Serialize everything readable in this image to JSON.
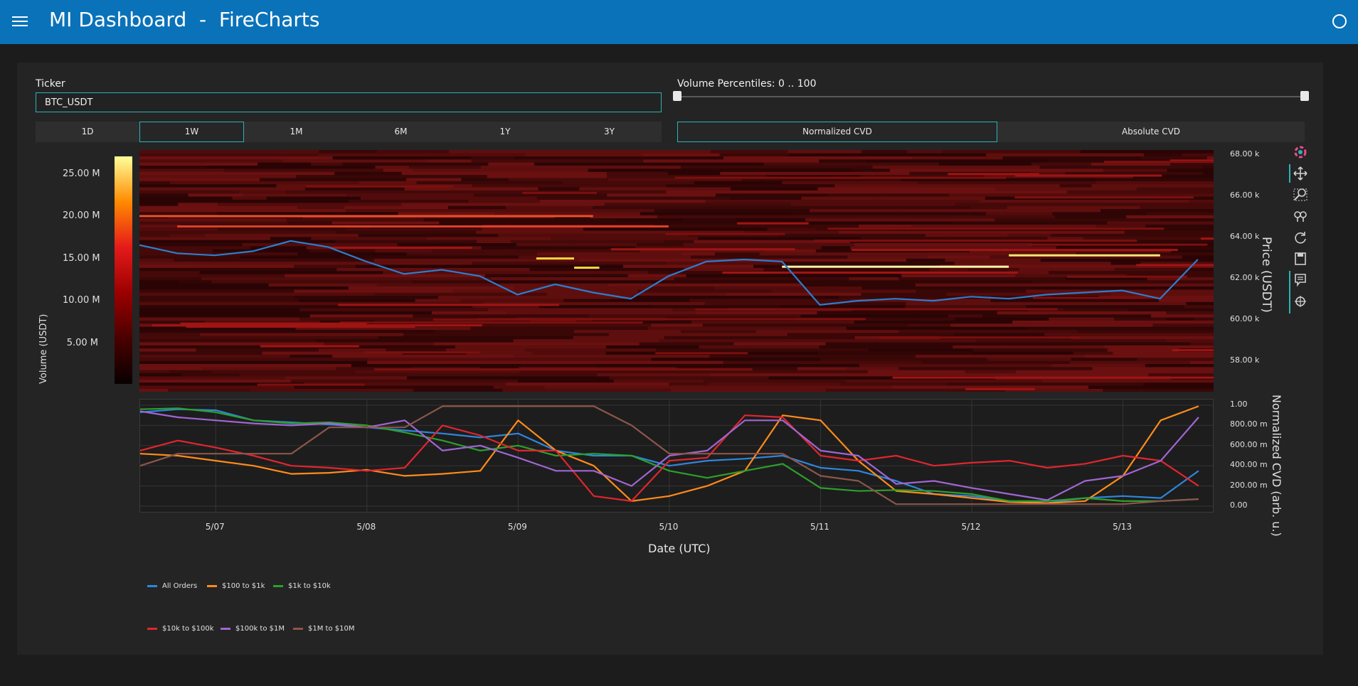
{
  "header": {
    "title": "MI Dashboard  -  FireCharts"
  },
  "ticker": {
    "label": "Ticker",
    "value": "BTC_USDT"
  },
  "volume_percentiles": {
    "label": "Volume Percentiles: 0 .. 100",
    "min": 0,
    "max": 100
  },
  "timeframes": [
    {
      "label": "1D",
      "active": false
    },
    {
      "label": "1W",
      "active": true
    },
    {
      "label": "1M",
      "active": false
    },
    {
      "label": "6M",
      "active": false
    },
    {
      "label": "1Y",
      "active": false
    },
    {
      "label": "3Y",
      "active": false
    }
  ],
  "cvd_modes": [
    {
      "label": "Normalized CVD",
      "active": true
    },
    {
      "label": "Absolute CVD",
      "active": false
    }
  ],
  "modebar": [
    "plotly-logo-icon",
    "pan-icon",
    "box-zoom-icon",
    "zoom-icon",
    "reset-icon",
    "save-icon",
    "hover-compare-icon",
    "crosshair-icon"
  ],
  "chart_data": [
    {
      "type": "heatmap",
      "colorbar_title": "Volume (USDT)",
      "colorbar_ticks": [
        "25.00 M",
        "20.00 M",
        "15.00 M",
        "10.00 M",
        "5.00 M"
      ],
      "colorbar_values": [
        25000000,
        20000000,
        15000000,
        10000000,
        5000000
      ],
      "ylabel": "Price (USDT)",
      "y_ticks": [
        "68.00 k",
        "66.00 k",
        "64.00 k",
        "62.00 k",
        "60.00 k",
        "58.00 k"
      ],
      "ylim": [
        56500,
        68200
      ],
      "colorscale": [
        "#080000",
        "#4a0000",
        "#9b0000",
        "#e51a1a",
        "#ff8a00",
        "#ffff9a"
      ],
      "price_line": {
        "name": "Price",
        "color": "#2a7fd0",
        "x": [
          "5/06 12:00",
          "5/06 18:00",
          "5/07 00:00",
          "5/07 06:00",
          "5/07 12:00",
          "5/07 18:00",
          "5/08 00:00",
          "5/08 06:00",
          "5/08 12:00",
          "5/08 18:00",
          "5/09 00:00",
          "5/09 06:00",
          "5/09 12:00",
          "5/09 18:00",
          "5/10 00:00",
          "5/10 06:00",
          "5/10 12:00",
          "5/10 18:00",
          "5/11 00:00",
          "5/11 06:00",
          "5/11 12:00",
          "5/11 18:00",
          "5/12 00:00",
          "5/12 06:00",
          "5/12 12:00",
          "5/12 18:00",
          "5/13 00:00",
          "5/13 06:00",
          "5/13 12:00"
        ],
        "y": [
          63600,
          63200,
          63100,
          63300,
          63800,
          63500,
          62800,
          62200,
          62400,
          62100,
          61200,
          61700,
          61300,
          61000,
          62100,
          62800,
          62900,
          62800,
          60700,
          60900,
          61000,
          60900,
          61100,
          61000,
          61200,
          61300,
          61400,
          61000,
          62900
        ]
      },
      "highlight_bands": [
        {
          "price": 62950,
          "start": "5/09 03:00",
          "end": "5/09 09:00",
          "color": "#ffd93d"
        },
        {
          "price": 62500,
          "start": "5/09 09:00",
          "end": "5/09 13:00",
          "color": "#ffd93d"
        },
        {
          "price": 62550,
          "start": "5/10 18:00",
          "end": "5/12 06:00",
          "color": "#fff4a8"
        },
        {
          "price": 63100,
          "start": "5/12 06:00",
          "end": "5/13 06:00",
          "color": "#ffe873"
        },
        {
          "price": 65000,
          "start": "5/06 12:00",
          "end": "5/09 12:00",
          "color": "#e8512c"
        },
        {
          "price": 64500,
          "start": "5/06 18:00",
          "end": "5/10 00:00",
          "color": "#d9412a"
        }
      ]
    },
    {
      "type": "line",
      "xlabel": "Date (UTC)",
      "ylabel": "Normalized CVD (arb. u.)",
      "x_ticks": [
        "5/07",
        "5/08",
        "5/09",
        "5/10",
        "5/11",
        "5/12",
        "5/13"
      ],
      "y_ticks": [
        "1.00",
        "800.00 m",
        "600.00 m",
        "400.00 m",
        "200.00 m",
        "0.00"
      ],
      "ylim": [
        0,
        1
      ],
      "x": [
        "5/06 12:00",
        "5/06 18:00",
        "5/07 00:00",
        "5/07 06:00",
        "5/07 12:00",
        "5/07 18:00",
        "5/08 00:00",
        "5/08 06:00",
        "5/08 12:00",
        "5/08 18:00",
        "5/09 00:00",
        "5/09 06:00",
        "5/09 12:00",
        "5/09 18:00",
        "5/10 00:00",
        "5/10 06:00",
        "5/10 12:00",
        "5/10 18:00",
        "5/11 00:00",
        "5/11 06:00",
        "5/11 12:00",
        "5/11 18:00",
        "5/12 00:00",
        "5/12 06:00",
        "5/12 12:00",
        "5/12 18:00",
        "5/13 00:00",
        "5/13 06:00",
        "5/13 12:00"
      ],
      "series": [
        {
          "name": "All Orders",
          "color": "#2e86de",
          "values": [
            0.93,
            0.96,
            0.95,
            0.85,
            0.83,
            0.81,
            0.78,
            0.75,
            0.72,
            0.68,
            0.72,
            0.55,
            0.5,
            0.5,
            0.4,
            0.45,
            0.47,
            0.5,
            0.38,
            0.35,
            0.25,
            0.12,
            0.1,
            0.05,
            0.03,
            0.08,
            0.1,
            0.08,
            0.35
          ]
        },
        {
          "name": "$100 to $1k",
          "color": "#ff8c1a",
          "values": [
            0.52,
            0.5,
            0.45,
            0.4,
            0.32,
            0.33,
            0.36,
            0.3,
            0.32,
            0.35,
            0.85,
            0.55,
            0.4,
            0.05,
            0.1,
            0.2,
            0.35,
            0.9,
            0.85,
            0.45,
            0.15,
            0.12,
            0.08,
            0.04,
            0.03,
            0.05,
            0.3,
            0.85,
            0.99
          ]
        },
        {
          "name": "$1k to $10k",
          "color": "#2ca02c",
          "values": [
            0.96,
            0.97,
            0.93,
            0.85,
            0.82,
            0.83,
            0.8,
            0.73,
            0.65,
            0.55,
            0.6,
            0.5,
            0.52,
            0.5,
            0.35,
            0.28,
            0.35,
            0.42,
            0.18,
            0.15,
            0.16,
            0.15,
            0.12,
            0.05,
            0.05,
            0.08,
            0.05,
            0.05,
            0.07
          ]
        },
        {
          "name": "$10k to $100k",
          "color": "#e0262e",
          "values": [
            0.55,
            0.65,
            0.58,
            0.5,
            0.4,
            0.38,
            0.35,
            0.38,
            0.8,
            0.7,
            0.55,
            0.55,
            0.1,
            0.05,
            0.45,
            0.48,
            0.9,
            0.88,
            0.5,
            0.45,
            0.5,
            0.4,
            0.43,
            0.45,
            0.38,
            0.42,
            0.5,
            0.45,
            0.2
          ]
        },
        {
          "name": "$100k to $1M",
          "color": "#a066d3",
          "values": [
            0.94,
            0.88,
            0.85,
            0.82,
            0.8,
            0.82,
            0.78,
            0.85,
            0.55,
            0.6,
            0.48,
            0.35,
            0.35,
            0.2,
            0.5,
            0.55,
            0.85,
            0.85,
            0.55,
            0.5,
            0.22,
            0.25,
            0.18,
            0.12,
            0.06,
            0.25,
            0.3,
            0.45,
            0.88
          ]
        },
        {
          "name": "$1M to $10M",
          "color": "#8c564b",
          "values": [
            0.4,
            0.52,
            0.52,
            0.52,
            0.52,
            0.78,
            0.78,
            0.78,
            0.99,
            0.99,
            0.99,
            0.99,
            0.99,
            0.8,
            0.52,
            0.52,
            0.52,
            0.52,
            0.3,
            0.25,
            0.02,
            0.02,
            0.02,
            0.02,
            0.02,
            0.02,
            0.02,
            0.05,
            0.07
          ]
        }
      ]
    }
  ]
}
